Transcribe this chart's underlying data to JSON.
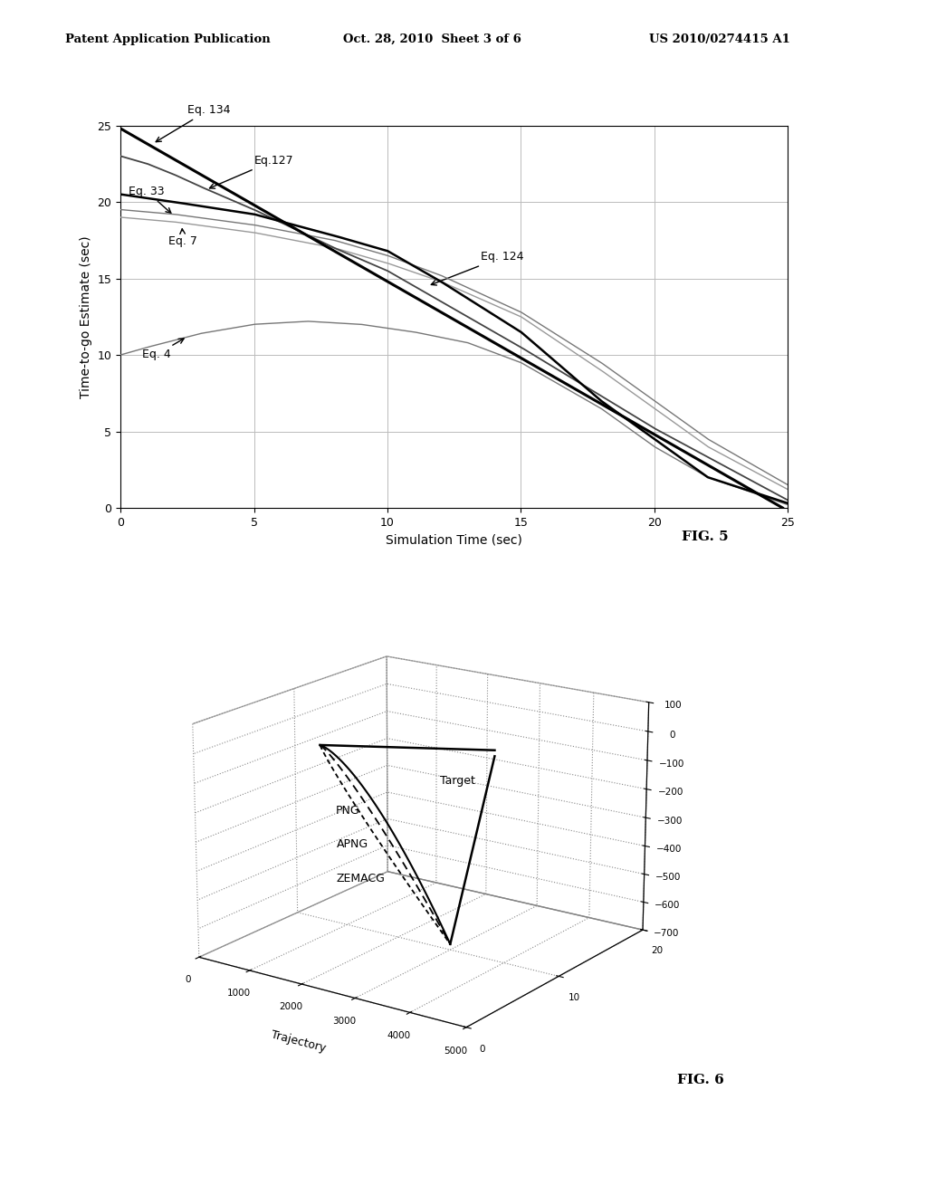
{
  "header_left": "Patent Application Publication",
  "header_mid": "Oct. 28, 2010  Sheet 3 of 6",
  "header_right": "US 2010/0274415 A1",
  "fig5": {
    "title": "FIG. 5",
    "xlabel": "Simulation Time (sec)",
    "ylabel": "Time-to-go Estimate (sec)",
    "xlim": [
      0,
      25
    ],
    "ylim": [
      0,
      25
    ],
    "xticks": [
      0,
      5,
      10,
      15,
      20,
      25
    ],
    "yticks": [
      0,
      5,
      10,
      15,
      20,
      25
    ]
  },
  "fig6": {
    "title": "FIG. 6",
    "xlabel": "Trajectory"
  },
  "background_color": "#ffffff"
}
